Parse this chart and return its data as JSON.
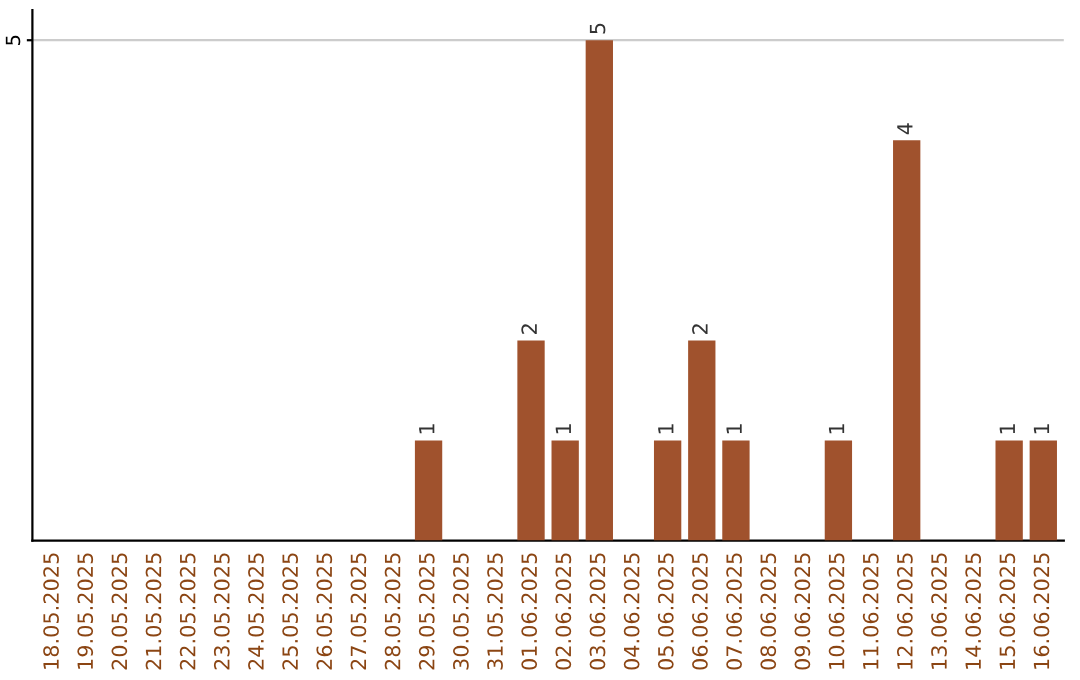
{
  "chart_data": {
    "type": "bar",
    "categories": [
      "18.05.2025",
      "19.05.2025",
      "20.05.2025",
      "21.05.2025",
      "22.05.2025",
      "23.05.2025",
      "24.05.2025",
      "25.05.2025",
      "26.05.2025",
      "27.05.2025",
      "28.05.2025",
      "29.05.2025",
      "30.05.2025",
      "31.05.2025",
      "01.06.2025",
      "02.06.2025",
      "03.06.2025",
      "04.06.2025",
      "05.06.2025",
      "06.06.2025",
      "07.06.2025",
      "08.06.2025",
      "09.06.2025",
      "10.06.2025",
      "11.06.2025",
      "12.06.2025",
      "13.06.2025",
      "14.06.2025",
      "15.06.2025",
      "16.06.2025"
    ],
    "values": [
      0,
      0,
      0,
      0,
      0,
      0,
      0,
      0,
      0,
      0,
      0,
      1,
      0,
      0,
      2,
      1,
      5,
      0,
      1,
      2,
      1,
      0,
      0,
      1,
      0,
      4,
      0,
      0,
      1,
      1
    ],
    "value_labels": [
      null,
      null,
      null,
      null,
      null,
      null,
      null,
      null,
      null,
      null,
      null,
      "1",
      null,
      null,
      "2",
      "1",
      "5",
      null,
      "1",
      "2",
      "1",
      null,
      null,
      "1",
      null,
      "4",
      null,
      null,
      "1",
      "1"
    ],
    "color": "#a0522d",
    "ylim": [
      0,
      5.3
    ],
    "yticks": [
      5
    ],
    "grid": "y"
  }
}
